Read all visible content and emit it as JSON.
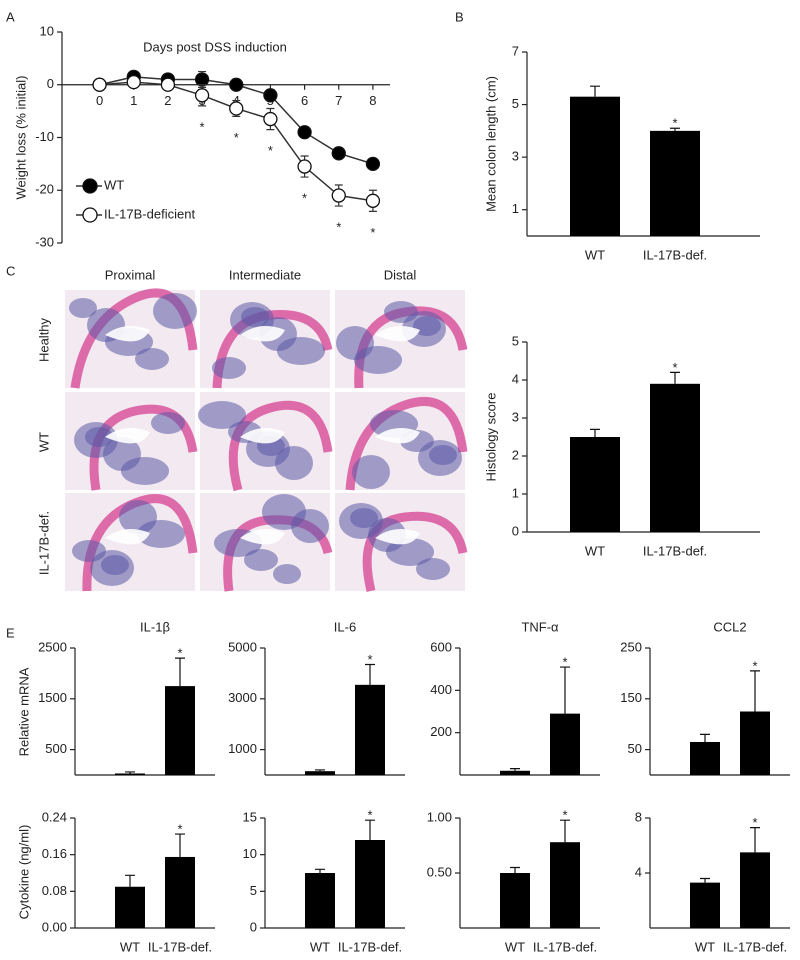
{
  "chart_data": [
    {
      "type": "line",
      "panel": "A",
      "title": "Days post DSS induction",
      "ylabel": "Weight loss (% initial)",
      "x": [
        0,
        1,
        2,
        3,
        4,
        5,
        6,
        7,
        8
      ],
      "xlim": [
        -1.1,
        8.5
      ],
      "xticks": [
        0,
        1,
        2,
        3,
        4,
        5,
        6,
        7,
        8
      ],
      "ylim": [
        -30,
        10
      ],
      "yticks": [
        -30,
        -20,
        -10,
        0,
        10
      ],
      "legend": "lower left",
      "series": [
        {
          "name": "WT",
          "color": "#000000",
          "values": [
            0,
            1.5,
            1,
            1,
            0,
            -2,
            -9,
            -13,
            -15
          ],
          "errors": [
            0.5,
            1,
            1,
            1.5,
            0.5,
            1,
            1,
            1,
            1
          ]
        },
        {
          "name": "IL-17B-deficient",
          "color": "#ffffff",
          "values": [
            0,
            0.5,
            0,
            -2,
            -4.5,
            -6.5,
            -15.5,
            -21,
            -22
          ],
          "errors": [
            0.5,
            0.5,
            0.5,
            2,
            1.5,
            2,
            2,
            2,
            2
          ],
          "significance": [
            null,
            null,
            null,
            "*",
            "*",
            "*",
            "*",
            "*",
            "*"
          ]
        }
      ]
    },
    {
      "type": "bar",
      "panel": "B",
      "ylabel": "Mean colon length (cm)",
      "categories": [
        "WT",
        "IL-17B-def."
      ],
      "values": [
        5.3,
        4.0
      ],
      "errors": [
        0.4,
        0.1
      ],
      "significance": [
        null,
        "*"
      ],
      "color": "#000000",
      "ylim": [
        0,
        7
      ],
      "yticks": [
        1,
        3,
        5,
        7
      ]
    },
    {
      "type": "bar",
      "panel": "D",
      "ylabel": "Histology score",
      "categories": [
        "WT",
        "IL-17B-def."
      ],
      "values": [
        2.5,
        3.9
      ],
      "errors": [
        0.2,
        0.3
      ],
      "significance": [
        null,
        "*"
      ],
      "color": "#000000",
      "ylim": [
        0,
        5
      ],
      "yticks": [
        0,
        1,
        2,
        3,
        4,
        5
      ]
    },
    {
      "type": "bar",
      "panel": "E",
      "title": "IL-1β",
      "ylabel": "Relative mRNA",
      "categories": [
        null,
        null
      ],
      "values": [
        30,
        1750
      ],
      "errors": [
        30,
        550
      ],
      "significance": [
        null,
        "*"
      ],
      "color": "#000000",
      "ylim": [
        0,
        2500
      ],
      "yticks": [
        500,
        1500,
        2500
      ]
    },
    {
      "type": "bar",
      "title": "IL-6",
      "categories": [
        null,
        null
      ],
      "values": [
        150,
        3550
      ],
      "errors": [
        50,
        800
      ],
      "significance": [
        null,
        "*"
      ],
      "color": "#000000",
      "ylim": [
        0,
        5000
      ],
      "yticks": [
        1000,
        3000,
        5000
      ]
    },
    {
      "type": "bar",
      "title": "TNF-α",
      "categories": [
        null,
        null
      ],
      "values": [
        20,
        290
      ],
      "errors": [
        10,
        220
      ],
      "significance": [
        null,
        "*"
      ],
      "color": "#000000",
      "ylim": [
        0,
        600
      ],
      "yticks": [
        200,
        400,
        600
      ]
    },
    {
      "type": "bar",
      "title": "CCL2",
      "categories": [
        null,
        null
      ],
      "values": [
        65,
        125
      ],
      "errors": [
        15,
        80
      ],
      "significance": [
        null,
        "*"
      ],
      "color": "#000000",
      "ylim": [
        0,
        250
      ],
      "yticks": [
        50,
        150,
        250
      ]
    },
    {
      "type": "bar",
      "ylabel": "Cytokine (ng/ml)",
      "categories": [
        "WT",
        "IL-17B-def."
      ],
      "values": [
        0.09,
        0.155
      ],
      "errors": [
        0.025,
        0.05
      ],
      "significance": [
        null,
        "*"
      ],
      "color": "#000000",
      "ylim": [
        0,
        0.24
      ],
      "yticks": [
        {
          "value": 0,
          "label": "0.00"
        },
        0.08,
        0.16,
        0.24
      ]
    },
    {
      "type": "bar",
      "categories": [
        "WT",
        "IL-17B-def."
      ],
      "values": [
        7.5,
        12
      ],
      "errors": [
        0.5,
        2.7
      ],
      "significance": [
        null,
        "*"
      ],
      "color": "#000000",
      "ylim": [
        0,
        15
      ],
      "yticks": [
        0,
        5,
        10,
        15
      ]
    },
    {
      "type": "bar",
      "categories": [
        "WT",
        "IL-17B-def."
      ],
      "values": [
        0.5,
        0.78
      ],
      "errors": [
        0.05,
        0.2
      ],
      "significance": [
        null,
        "*"
      ],
      "color": "#000000",
      "ylim": [
        0,
        1.0
      ],
      "yticks": [
        {
          "value": 0.5,
          "label": "0.50"
        },
        {
          "value": 1.0,
          "label": "1.00"
        }
      ]
    },
    {
      "type": "bar",
      "categories": [
        "WT",
        "IL-17B-def."
      ],
      "values": [
        3.3,
        5.5
      ],
      "errors": [
        0.3,
        1.8
      ],
      "significance": [
        null,
        "*"
      ],
      "color": "#000000",
      "ylim": [
        0,
        8
      ],
      "yticks": [
        4,
        8
      ]
    }
  ],
  "histology": {
    "panel": "C",
    "columns": [
      "Proximal",
      "Intermediate",
      "Distal"
    ],
    "rows": [
      "Healthy",
      "WT",
      "IL-17B-def."
    ]
  }
}
